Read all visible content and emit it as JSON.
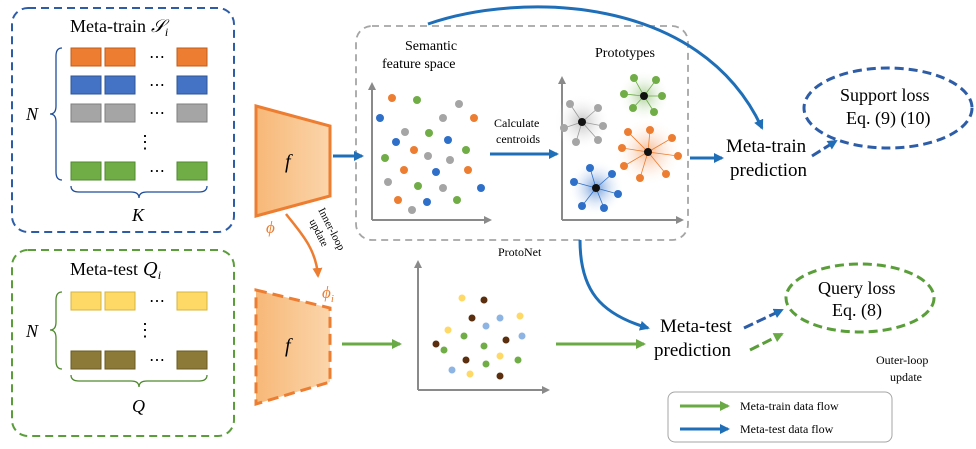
{
  "meta_train": {
    "title": "Meta-train",
    "symbol": "𝒮",
    "sub": "i",
    "rows_label": "N",
    "cols_label": "K",
    "dots": "⋯",
    "vdots": "⋮"
  },
  "meta_test": {
    "title": "Meta-test",
    "symbol": "𝑄",
    "sub": "i",
    "rows_label": "N",
    "cols_label": "Q",
    "dots": "⋯",
    "vdots": "⋮"
  },
  "encoder": {
    "label": "f",
    "phi": "ϕ",
    "phi_i": "ϕ",
    "phi_i_sub": "i",
    "inner_loop_line1": "Inner-loop",
    "inner_loop_line2": "update"
  },
  "protonet": {
    "label": "ProtoNet",
    "space_line1": "Semantic",
    "space_line2": "feature space",
    "calc_line1": "Calculate",
    "calc_line2": "centroids",
    "prototypes": "Prototypes"
  },
  "meta_train_prediction": {
    "line1": "Meta-train",
    "line2": "prediction"
  },
  "meta_test_prediction": {
    "line1": "Meta-test",
    "line2": "prediction"
  },
  "support_loss": {
    "line1": "Support loss",
    "line2": "Eq. (9) (10)"
  },
  "query_loss": {
    "line1": "Query loss",
    "line2": "Eq. (8)"
  },
  "outer_loop": {
    "line1": "Outer-loop",
    "line2": "update"
  },
  "legend": {
    "green_label": "Meta-train data flow",
    "blue_label": "Meta-test data flow"
  },
  "colors": {
    "blue": "#1f6fb8",
    "green": "#6aaa45",
    "orange": "#ed7d31",
    "gray": "#a5a5a5",
    "dashed_blue": "#2e5da8",
    "dashed_green": "#5a9e3a",
    "yellow": "#ffd966",
    "olive": "#8c7a38",
    "encoder_fill": "#f8c186",
    "dark_brown": "#5a2e0e",
    "light_blue": "#8db4e2"
  }
}
